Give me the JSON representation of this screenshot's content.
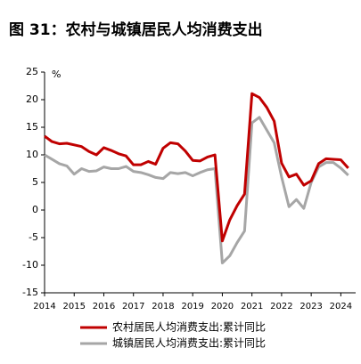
{
  "chart_data": {
    "type": "line",
    "title": "图 31：农村与城镇居民人均消费支出",
    "y_unit": "%",
    "x": [
      2014,
      2014.25,
      2014.5,
      2014.75,
      2015,
      2015.25,
      2015.5,
      2015.75,
      2016,
      2016.25,
      2016.5,
      2016.75,
      2017,
      2017.25,
      2017.5,
      2017.75,
      2018,
      2018.25,
      2018.5,
      2018.75,
      2019,
      2019.25,
      2019.5,
      2019.75,
      2020,
      2020.25,
      2020.5,
      2020.75,
      2021,
      2021.25,
      2021.5,
      2021.75,
      2022,
      2022.25,
      2022.5,
      2022.75,
      2023,
      2023.25,
      2023.5,
      2023.75,
      2024,
      2024.25
    ],
    "series": [
      {
        "name": "农村居民人均消费支出:累计同比",
        "color": "#c00000",
        "values": [
          13.4,
          12.4,
          12.0,
          12.1,
          11.8,
          11.5,
          10.6,
          10.0,
          11.3,
          10.8,
          10.2,
          9.8,
          8.2,
          8.2,
          8.8,
          8.3,
          11.2,
          12.2,
          12.0,
          10.7,
          9.0,
          8.9,
          9.6,
          10.0,
          -5.6,
          -1.8,
          0.8,
          2.9,
          21.1,
          20.4,
          18.6,
          16.1,
          8.5,
          6.0,
          6.5,
          4.5,
          5.3,
          8.4,
          9.3,
          9.2,
          9.1,
          7.6
        ]
      },
      {
        "name": "城镇居民人均消费支出:累计同比",
        "color": "#a6a6a6",
        "values": [
          10.0,
          9.2,
          8.4,
          8.0,
          6.5,
          7.5,
          7.0,
          7.1,
          7.8,
          7.5,
          7.5,
          7.9,
          7.0,
          6.8,
          6.4,
          5.9,
          5.7,
          6.8,
          6.6,
          6.8,
          6.2,
          6.8,
          7.3,
          7.5,
          -9.6,
          -8.3,
          -5.9,
          -3.8,
          15.8,
          16.8,
          14.5,
          12.2,
          6.0,
          0.6,
          1.9,
          0.3,
          5.0,
          7.8,
          8.6,
          8.6,
          7.6,
          6.3
        ]
      }
    ],
    "xlim": [
      2014,
      2024.5
    ],
    "xticks": [
      2014,
      2015,
      2016,
      2017,
      2018,
      2019,
      2020,
      2021,
      2022,
      2023,
      2024
    ],
    "ylim": [
      -15,
      25
    ],
    "yticks": [
      -15,
      -10,
      -5,
      0,
      5,
      10,
      15,
      20,
      25
    ]
  }
}
